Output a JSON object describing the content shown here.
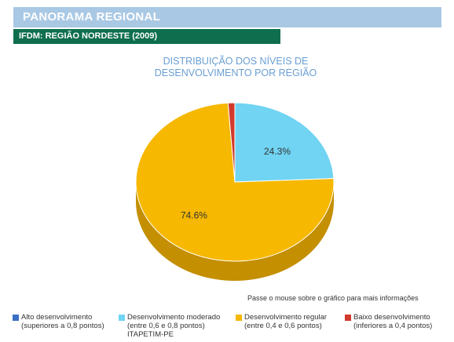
{
  "header": {
    "title": "PANORAMA REGIONAL",
    "color": "#a9c8e4"
  },
  "subheader": {
    "title": "IFDM: REGIÃO NORDESTE (2009)",
    "color": "#0f6e4e"
  },
  "hint": "Passe o mouse sobre o gráfico para mais informações",
  "city": "ITAPETIM-PE",
  "chart_data": {
    "type": "pie",
    "title_lines": [
      "DISTRIBUIÇÃO DOS NÍVEIS DE",
      "DESENVOLVIMENTO POR REGIÃO"
    ],
    "slices": [
      {
        "name": "Alto desenvolvimento",
        "value": 0.0,
        "label": "",
        "color": "#3a6fc4",
        "shade": "#2a4f8c"
      },
      {
        "name": "Desenvolvimento moderado",
        "value": 24.3,
        "label": "24.3%",
        "color": "#70d4f2",
        "shade": "#4fa9c4"
      },
      {
        "name": "Desenvolvimento regular",
        "value": 74.6,
        "label": "74.6%",
        "color": "#f6b800",
        "shade": "#c48f00"
      },
      {
        "name": "Baixo desenvolvimento",
        "value": 1.1,
        "label": "",
        "color": "#d13a2c",
        "shade": "#9c2a20"
      }
    ]
  },
  "legend": [
    {
      "line1": "Alto desenvolvimento",
      "line2": "(superiores a 0,8 pontos)",
      "color": "#3a6fc4"
    },
    {
      "line1": "Desenvolvimento moderado",
      "line2": "(entre 0,6 e 0,8 pontos)",
      "color": "#70d4f2"
    },
    {
      "line1": "Desenvolvimento regular",
      "line2": "(entre 0,4 e 0,6 pontos)",
      "color": "#f6b800"
    },
    {
      "line1": "Baixo desenvolvimento",
      "line2": "(inferiores a 0,4 pontos)",
      "color": "#d13a2c"
    }
  ]
}
